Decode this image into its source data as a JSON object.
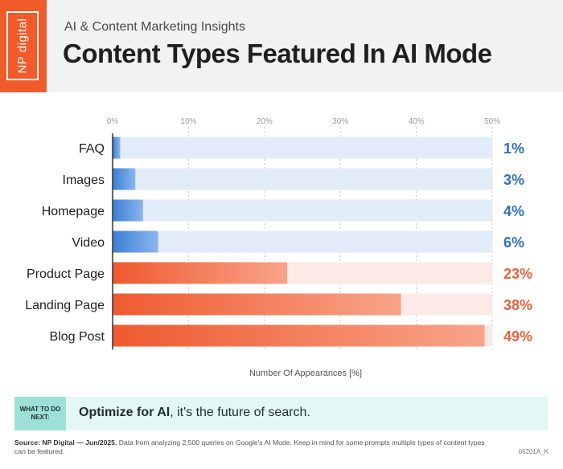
{
  "header": {
    "logo_text": "NP digital",
    "subtitle": "AI & Content Marketing Insights",
    "title": "Content Types Featured In AI Mode"
  },
  "chart_data": {
    "type": "bar",
    "orientation": "horizontal",
    "categories": [
      "FAQ",
      "Images",
      "Homepage",
      "Video",
      "Product Page",
      "Landing Page",
      "Blog Post"
    ],
    "values": [
      1,
      3,
      4,
      6,
      23,
      38,
      49
    ],
    "value_labels": [
      "1%",
      "3%",
      "4%",
      "6%",
      "23%",
      "38%",
      "49%"
    ],
    "xlabel": "Number Of Appearances [%]",
    "xlim": [
      0,
      50
    ],
    "ticks": [
      "0%",
      "10%",
      "20%",
      "30%",
      "40%",
      "50%"
    ],
    "grid": true,
    "colors": {
      "blue_group": "#3b7fd6",
      "blue_track": "#e2ebf8",
      "orange_group": "#ef5a2f",
      "orange_track": "#fdeae6",
      "blue_label": "#2f6fbf",
      "orange_label": "#e8623b"
    },
    "group_of_each_bar": [
      "blue",
      "blue",
      "blue",
      "blue",
      "orange",
      "orange",
      "orange"
    ]
  },
  "callout": {
    "tag": "WHAT TO DO NEXT:",
    "bold": "Optimize for AI",
    "rest": ", it's the future of search."
  },
  "footer": {
    "source_bold": "Source: NP Digital — Jun/2025.",
    "source_text": " Data from analyzing 2,500 queries on Google's AI Mode. Keep in mind for some prompts multiple types of content types can be featured.",
    "code": "06201A_K"
  }
}
